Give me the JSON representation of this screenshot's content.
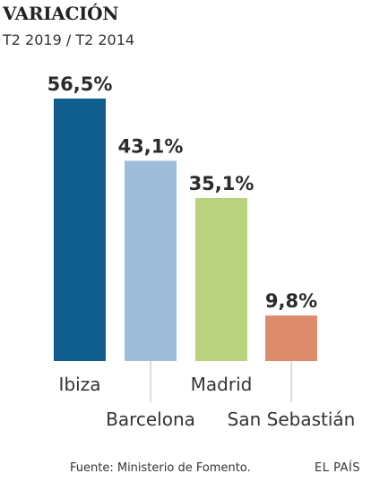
{
  "chart_data": {
    "type": "bar",
    "title": "VARIACIÓN",
    "subtitle": "T2 2019 / T2 2014",
    "categories": [
      "Ibiza",
      "Barcelona",
      "Madrid",
      "San Sebastián"
    ],
    "values": [
      56.5,
      43.1,
      35.1,
      9.8
    ],
    "value_labels": [
      "56,5%",
      "43,1%",
      "35,1%",
      "9,8%"
    ],
    "colors": [
      "#0f5e8f",
      "#9fbcd8",
      "#b8d27e",
      "#dc8c6d"
    ],
    "ylim": [
      0,
      56.5
    ],
    "xlabel": "",
    "ylabel": "",
    "grid": false,
    "legend": "none"
  },
  "footer": {
    "source": "Fuente: Ministerio de Fomento.",
    "brand": "EL PAÍS"
  }
}
